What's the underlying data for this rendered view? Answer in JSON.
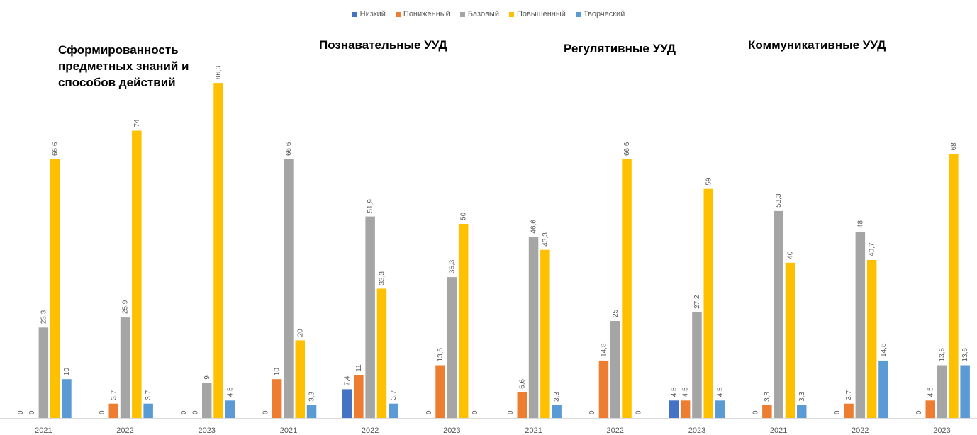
{
  "chart_data": {
    "type": "bar",
    "groups": [
      "Сформированность предметных знаний и способов действий",
      "Познавательные УУД",
      "Регулятивные УУД",
      "Коммуникативные УУД"
    ],
    "categories": [
      "2021",
      "2022",
      "2023"
    ],
    "legend": [
      "Низкий",
      "Пониженный",
      "Базовый",
      "Повышенный",
      "Творческий"
    ],
    "colors": {
      "Низкий": "#4472c4",
      "Пониженный": "#ed7d31",
      "Базовый": "#a5a5a5",
      "Повышенный": "#ffc000",
      "Творческий": "#5b9bd5"
    },
    "data": [
      [
        [
          0,
          0,
          23.3,
          66.6,
          10
        ],
        [
          0,
          3.7,
          25.9,
          74,
          3.7
        ],
        [
          0,
          0,
          9,
          86.3,
          4.5
        ]
      ],
      [
        [
          0,
          10,
          66.6,
          20,
          3.3
        ],
        [
          7.4,
          11,
          51.9,
          33.3,
          3.7
        ],
        [
          0,
          13.6,
          36.3,
          50,
          0
        ]
      ],
      [
        [
          0,
          6.6,
          46.6,
          43.3,
          3.3
        ],
        [
          0,
          14.8,
          25,
          66.6,
          0
        ],
        [
          4.5,
          4.5,
          27.2,
          59,
          4.5
        ]
      ],
      [
        [
          0,
          3.3,
          53.3,
          40,
          3.3
        ],
        [
          0,
          3.7,
          48,
          40.7,
          14.8
        ],
        [
          0,
          4.5,
          13.6,
          68,
          13.6
        ]
      ]
    ],
    "labels": [
      [
        [
          "0",
          "0",
          "23,3",
          "66,6",
          "10"
        ],
        [
          "0",
          "3,7",
          "25,9",
          "74",
          "3,7"
        ],
        [
          "0",
          "0",
          "9",
          "86,3",
          "4,5"
        ]
      ],
      [
        [
          "0",
          "10",
          "66,6",
          "20",
          "3,3"
        ],
        [
          "7,4",
          "11",
          "51,9",
          "33,3",
          "3,7"
        ],
        [
          "0",
          "13,6",
          "36,3",
          "50",
          "0"
        ]
      ],
      [
        [
          "0",
          "6,6",
          "46,6",
          "43,3",
          "3,3"
        ],
        [
          "0",
          "14,8",
          "25",
          "66,6",
          "0"
        ],
        [
          "4,5",
          "4,5",
          "27,2",
          "59",
          "4,5"
        ]
      ],
      [
        [
          "0",
          "3,3",
          "53,3",
          "40",
          "3,3"
        ],
        [
          "0",
          "3,7",
          "48",
          "40,7",
          "14,8"
        ],
        [
          "0",
          "4,5",
          "13,6",
          "68",
          "13,6"
        ]
      ]
    ],
    "ylim": [
      0,
      100
    ],
    "grid": false,
    "legend_position": "top"
  }
}
